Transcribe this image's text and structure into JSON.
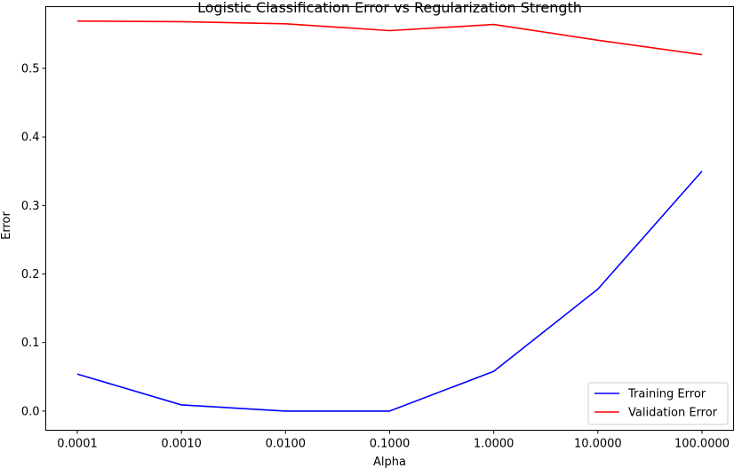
{
  "chart_data": {
    "type": "line",
    "title": "Logistic Classification Error vs Regularization Strength",
    "xlabel": "Alpha",
    "ylabel": "Error",
    "categories": [
      "0.0001",
      "0.0010",
      "0.0100",
      "0.1000",
      "1.0000",
      "10.0000",
      "100.0000"
    ],
    "y_ticks": [
      "0.0",
      "0.1",
      "0.2",
      "0.3",
      "0.4",
      "0.5"
    ],
    "ylim": [
      -0.028,
      0.59
    ],
    "grid": false,
    "legend_position": "bottom-right",
    "series": [
      {
        "name": "Training Error",
        "color": "#0000ff",
        "values": [
          0.054,
          0.009,
          0.0,
          0.0,
          0.058,
          0.178,
          0.35
        ]
      },
      {
        "name": "Validation Error",
        "color": "#ff0000",
        "values": [
          0.569,
          0.568,
          0.565,
          0.555,
          0.564,
          0.541,
          0.52
        ]
      }
    ]
  }
}
